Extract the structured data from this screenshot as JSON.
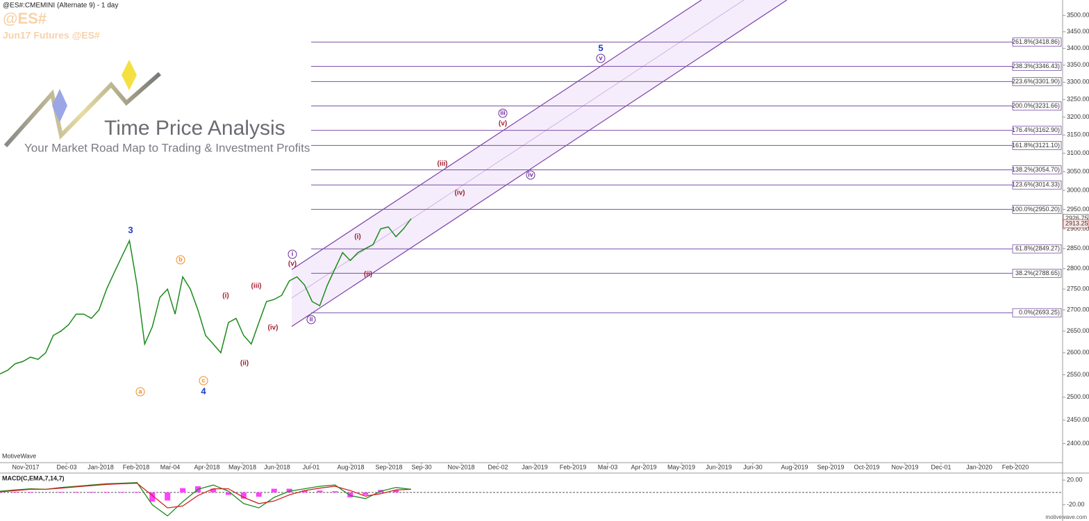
{
  "header": {
    "title": "@ES#:CMEMINI (Alternate 9) - 1 day",
    "symbol": "@ES#",
    "subtitle": "Jun17 Futures @ES#",
    "watermark": "MotiveWave",
    "footer": "motivewave.com"
  },
  "logo": {
    "title": "Time Price Analysis",
    "tagline": "Your Market Road Map to Trading & Investment Profits"
  },
  "chart_data": [
    {
      "type": "line",
      "log_scale": true,
      "color": "#1a8a1a",
      "values": [
        2552,
        2560,
        2575,
        2580,
        2590,
        2585,
        2600,
        2640,
        2650,
        2665,
        2690,
        2690,
        2680,
        2700,
        2750,
        2790,
        2830,
        2870,
        2760,
        2620,
        2660,
        2730,
        2750,
        2690,
        2780,
        2750,
        2700,
        2640,
        2620,
        2600,
        2670,
        2680,
        2640,
        2620,
        2670,
        2720,
        2725,
        2735,
        2770,
        2780,
        2760,
        2720,
        2710,
        2760,
        2800,
        2840,
        2820,
        2840,
        2850,
        2860,
        2900,
        2905,
        2880,
        2900,
        2926
      ],
      "ylim": [
        2360,
        3548
      ],
      "yticks": [
        {
          "value": 2400,
          "label": "2400.00"
        },
        {
          "value": 2450,
          "label": "2450.00"
        },
        {
          "value": 2500,
          "label": "2500.00"
        },
        {
          "value": 2550,
          "label": "2550.00"
        },
        {
          "value": 2600,
          "label": "2600.00"
        },
        {
          "value": 2650,
          "label": "2650.00"
        },
        {
          "value": 2700,
          "label": "2700.00"
        },
        {
          "value": 2750,
          "label": "2750.00"
        },
        {
          "value": 2800,
          "label": "2800.00"
        },
        {
          "value": 2850,
          "label": "2850.00"
        },
        {
          "value": 2900,
          "label": "2900.00"
        },
        {
          "value": 2950,
          "label": "2950.00"
        },
        {
          "value": 3000,
          "label": "3000.00"
        },
        {
          "value": 3050,
          "label": "3050.00"
        },
        {
          "value": 3100,
          "label": "3100.00"
        },
        {
          "value": 3150,
          "label": "3150.00"
        },
        {
          "value": 3200,
          "label": "3200.00"
        },
        {
          "value": 3250,
          "label": "3250.00"
        },
        {
          "value": 3300,
          "label": "3300.00"
        },
        {
          "value": 3350,
          "label": "3350.00"
        },
        {
          "value": 3400,
          "label": "3400.00"
        },
        {
          "value": 3450,
          "label": "3450.00"
        },
        {
          "value": 3500,
          "label": "3500.00"
        }
      ],
      "xtick_labels": [
        "Nov-2017",
        "Dec-03",
        "Jan-2018",
        "Feb-2018",
        "Mar-04",
        "Apr-2018",
        "May-2018",
        "Jun-2018",
        "Jul-01",
        "Aug-2018",
        "Sep-2018",
        "Sep-30",
        "Nov-2018",
        "Dec-02",
        "Jan-2019",
        "Feb-2019",
        "Mar-03",
        "Apr-2019",
        "May-2019",
        "Jun-2019",
        "Jun-30",
        "Aug-2019",
        "Sep-2019",
        "Oct-2019",
        "Nov-2019",
        "Dec-01",
        "Jan-2020",
        "Feb-2020"
      ],
      "price_tags": [
        2926.75,
        2913.25
      ],
      "fib_levels": {
        "color": "#7b4fa8",
        "values": [
          3418.86,
          3346.43,
          3301.9,
          3231.66,
          3162.9,
          3121.1,
          3054.7,
          3014.33,
          2950.2,
          2849.27,
          2788.65,
          2693.25
        ],
        "value_labels": [
          "261.8%(3418.86)",
          "238.3%(3346.43)",
          "223.6%(3301.90)",
          "200.0%(3231.66)",
          "176.4%(3162.90)",
          "161.8%(3121.10)",
          "138.2%(3054.70)",
          "123.6%(3014.33)",
          "100.0%(2950.20)",
          "61.8%(2849.27)",
          "38.2%(2788.65)",
          "0.0%(2693.25)"
        ]
      },
      "wave_labels": [
        "3",
        "b",
        "a",
        "c",
        "4",
        "(i)",
        "(ii)",
        "(iii)",
        "(iv)",
        "(v)",
        "i",
        "ii",
        "(i)",
        "(ii)",
        "(iii)",
        "(iv)",
        "iii",
        "(v)",
        "iv",
        "5",
        "v"
      ]
    },
    {
      "type": "line",
      "title": "MACD(C,EMA,7,14,7)",
      "series": [
        {
          "color": "#1a8a1a",
          "values": [
            2,
            4,
            6,
            5,
            8,
            10,
            12,
            14,
            15,
            16,
            -20,
            -38,
            -15,
            5,
            12,
            2,
            -18,
            -25,
            -8,
            2,
            6,
            10,
            12,
            -5,
            -10,
            2,
            8,
            5
          ]
        },
        {
          "color": "#d02020",
          "values": [
            1,
            3,
            5,
            5,
            7,
            9,
            11,
            13,
            14,
            15,
            -5,
            -25,
            -22,
            -5,
            6,
            6,
            -8,
            -18,
            -14,
            -4,
            3,
            7,
            10,
            3,
            -6,
            -2,
            4,
            5
          ]
        }
      ],
      "histogram": {
        "color": "#ff40ff",
        "values": [
          1,
          1,
          1,
          0,
          1,
          1,
          1,
          1,
          1,
          1,
          -15,
          -13,
          7,
          10,
          6,
          -4,
          -10,
          -7,
          6,
          6,
          3,
          3,
          2,
          -8,
          -4,
          4,
          4,
          0
        ]
      },
      "ylim": [
        -44,
        28
      ],
      "yticks": [
        {
          "value": 20,
          "label": "20.00"
        },
        {
          "value": -20,
          "label": "-20.00"
        }
      ]
    }
  ]
}
